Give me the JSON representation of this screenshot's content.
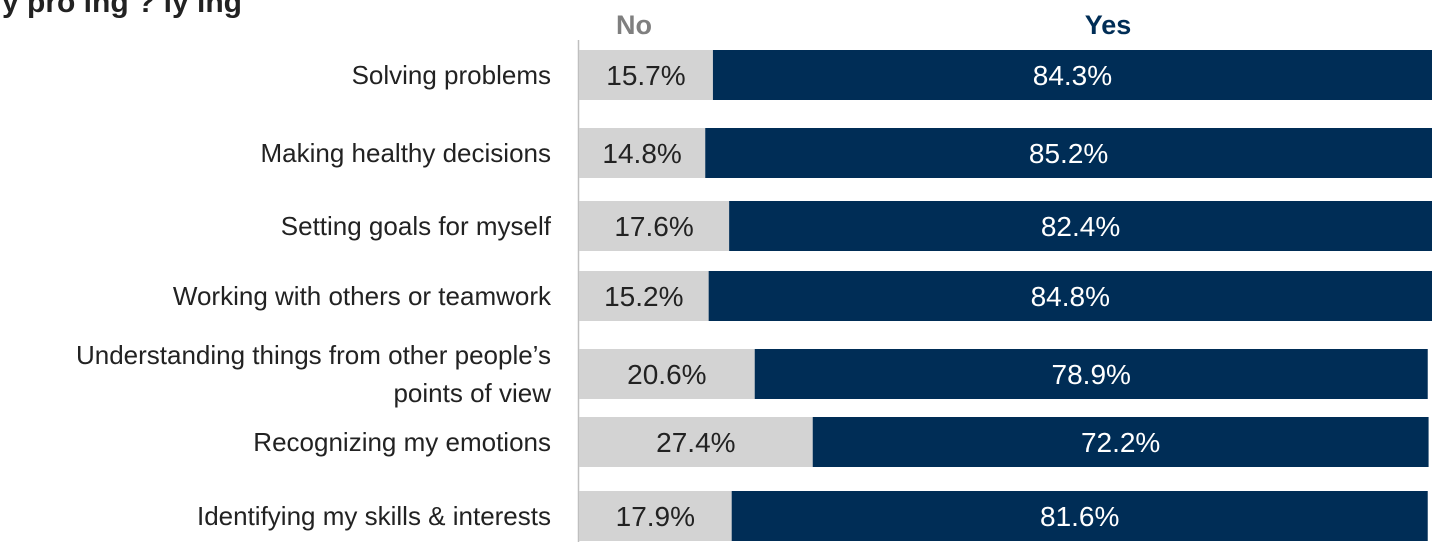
{
  "chart_data": {
    "type": "bar",
    "orientation": "horizontal",
    "stacked": true,
    "title": "y pro   ing   ?  ly   ing",
    "categories": [
      "Solving problems",
      "Making healthy decisions",
      "Setting goals for myself",
      "Working with others or teamwork",
      "Understanding things from other people’s points of view",
      "Recognizing my emotions",
      "Identifying my skills & interests"
    ],
    "series": [
      {
        "name": "No",
        "color": "#d3d3d3",
        "values": [
          15.7,
          14.8,
          17.6,
          15.2,
          20.6,
          27.4,
          17.9
        ],
        "labels": [
          "15.7%",
          "14.8%",
          "17.6%",
          "15.2%",
          "20.6%",
          "27.4%",
          "17.9%"
        ]
      },
      {
        "name": "Yes",
        "color": "#002d56",
        "values": [
          84.3,
          85.2,
          82.4,
          84.8,
          78.9,
          72.2,
          81.6
        ],
        "labels": [
          "84.3%",
          "85.2%",
          "82.4%",
          "84.8%",
          "78.9%",
          "72.2%",
          "81.6%"
        ]
      }
    ],
    "xlim": [
      0,
      100
    ],
    "grid": false,
    "legend_position": "top"
  }
}
